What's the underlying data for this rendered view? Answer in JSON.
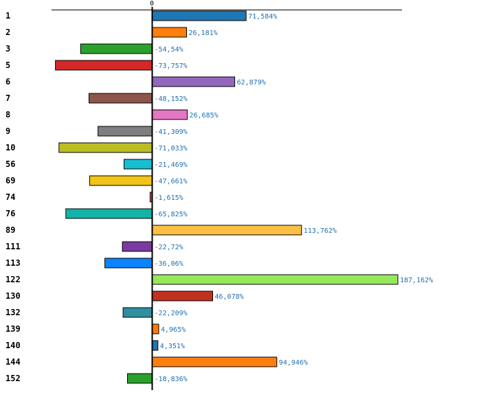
{
  "chart_data": {
    "type": "bar",
    "orientation": "horizontal",
    "title": "",
    "xlabel": "",
    "ylabel": "",
    "zero_tick_label": "0",
    "value_suffix": "%",
    "xlim": [
      -100,
      200
    ],
    "grid": false,
    "categories": [
      "1",
      "2",
      "3",
      "5",
      "6",
      "7",
      "8",
      "9",
      "10",
      "56",
      "69",
      "74",
      "76",
      "89",
      "111",
      "113",
      "122",
      "130",
      "132",
      "139",
      "140",
      "144",
      "152"
    ],
    "values": [
      71.584,
      26.181,
      -54.54,
      -73.757,
      62.879,
      -48.152,
      26.685,
      -41.309,
      -71.033,
      -21.469,
      -47.661,
      -1.615,
      -65.825,
      113.762,
      -22.72,
      -36.06,
      187.162,
      46.078,
      -22.209,
      4.965,
      4.351,
      94.946,
      -18.836
    ],
    "value_labels": [
      "71,584%",
      "26,181%",
      "-54,54%",
      "-73,757%",
      "62,879%",
      "-48,152%",
      "26,685%",
      "-41,309%",
      "-71,033%",
      "-21,469%",
      "-47,661%",
      "-1,615%",
      "-65,825%",
      "113,762%",
      "-22,72%",
      "-36,06%",
      "187,162%",
      "46,078%",
      "-22,209%",
      "4,965%",
      "4,351%",
      "94,946%",
      "-18,836%"
    ],
    "colors": [
      "#1f77b4",
      "#ff7f0e",
      "#2ca02c",
      "#d62728",
      "#9467bd",
      "#8c564b",
      "#e377c2",
      "#7f7f7f",
      "#bcbd22",
      "#17becf",
      "#f2c318",
      "#d9534f",
      "#12b3a8",
      "#fdbf43",
      "#7b3aa0",
      "#0b84ff",
      "#96e85a",
      "#c0321f",
      "#2e8fa0",
      "#ff7a00",
      "#1f77b4",
      "#ff7f0e",
      "#2ca02c"
    ]
  }
}
